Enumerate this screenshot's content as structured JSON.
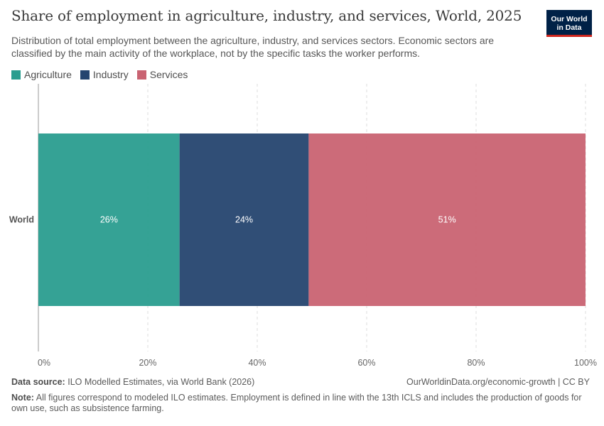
{
  "title": "Share of employment in agriculture, industry, and services, World, 2025",
  "subtitle": "Distribution of total employment between the agriculture, industry, and services sectors. Economic sectors are classified by the main activity of the workplace, not by the specific tasks the worker performs.",
  "logo": {
    "line1": "Our World",
    "line2": "in Data"
  },
  "footer": {
    "source_label": "Data source:",
    "source_text": "ILO Modelled Estimates, via World Bank (2026)",
    "url": "OurWorldinData.org/economic-growth | CC BY",
    "note_label": "Note:",
    "note_text": "All figures correspond to modeled ILO estimates. Employment is defined in line with the 13th ICLS and includes the production of goods for own use, such as subsistence farming."
  },
  "chart_data": {
    "type": "bar",
    "orientation": "horizontal",
    "stacked": true,
    "categories": [
      "World"
    ],
    "series": [
      {
        "name": "Agriculture",
        "values": [
          25.8
        ],
        "label": "26%",
        "color": "#2a9d8f"
      },
      {
        "name": "Industry",
        "values": [
          23.6
        ],
        "label": "24%",
        "color": "#25446f"
      },
      {
        "name": "Services",
        "values": [
          50.6
        ],
        "label": "51%",
        "color": "#c96372"
      }
    ],
    "xlim": [
      0,
      100
    ],
    "xticks": [
      "0%",
      "20%",
      "40%",
      "60%",
      "80%",
      "100%"
    ],
    "grid": true,
    "legend_position": "top-left"
  }
}
